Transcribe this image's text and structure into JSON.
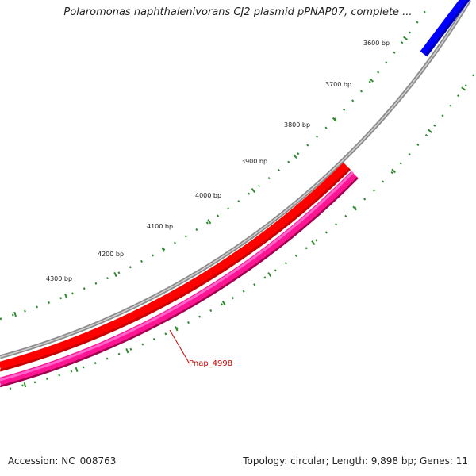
{
  "title": "Polaromonas naphthalenivorans CJ2 plasmid pPNAP07, complete ...",
  "accession": "Accession: NC_008763",
  "summary": "Topology: circular; Length: 9,898 bp; Genes: 11",
  "scale_labels": [
    "3600 bp",
    "3700 bp",
    "3800 bp",
    "3900 bp",
    "4000 bp",
    "4100 bp",
    "4200 bp",
    "4300 bp"
  ],
  "gene_label": "Pnap_4998",
  "colors": {
    "backbone": "#8c8c8c",
    "gene_blue": "#0000ff",
    "gene_red": "#ff0000",
    "gene_red_dark": "#c80000",
    "gene_pink": "#ff1493",
    "gene_pink_light": "#ff66cc",
    "gene_pink_dark": "#a0004c",
    "tick_green": "#2e8b2e",
    "label_red": "#cc0000"
  }
}
